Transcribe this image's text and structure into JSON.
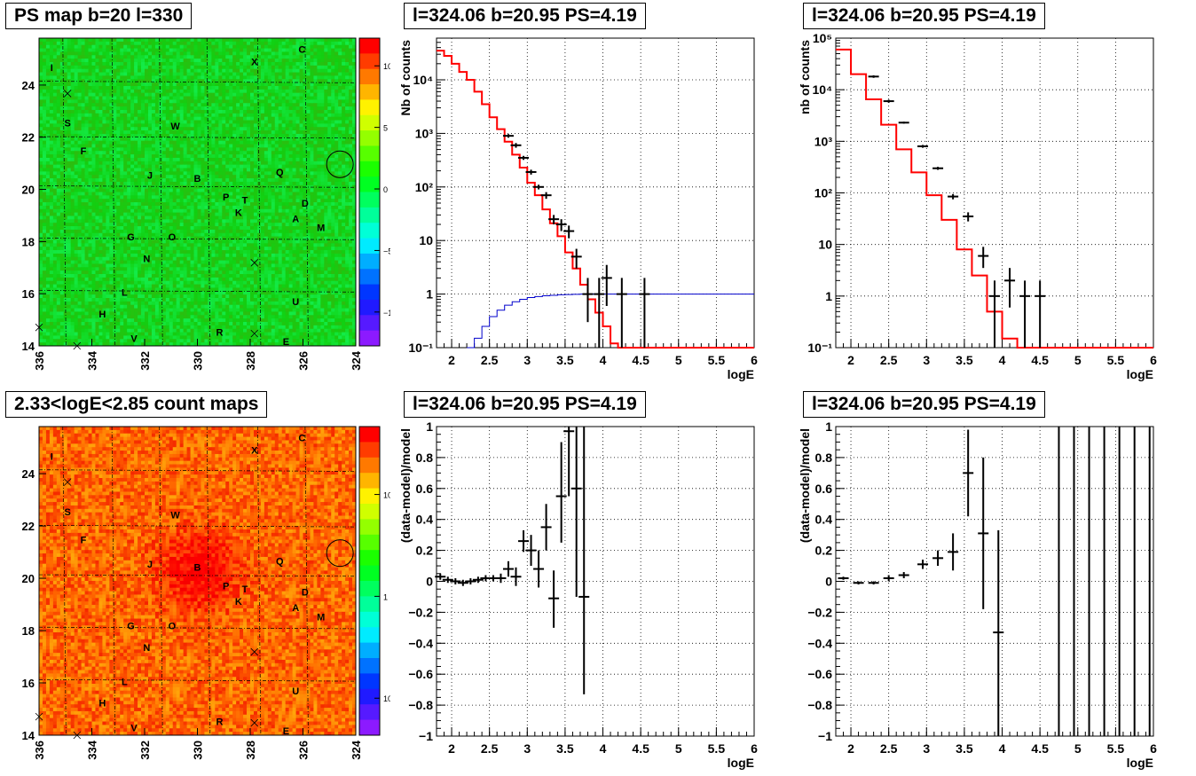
{
  "colors": {
    "fit": "#ff0000",
    "background": "#0000cc",
    "data": "#000000",
    "grid": "#888888"
  },
  "chart_data": [
    {
      "type": "heatmap",
      "title": "PS map b=20 l=330",
      "x_ticks": [
        "336",
        "334",
        "332",
        "330",
        "328",
        "326",
        "324"
      ],
      "y_ticks": [
        "14",
        "16",
        "18",
        "20",
        "22",
        "24"
      ],
      "colorbar_ticks": [
        "10",
        "5",
        "0",
        "−5",
        "−10"
      ],
      "sources": [
        "C",
        "X",
        "I",
        "S",
        "W",
        "F",
        "Q",
        "J",
        "B",
        "D",
        "P",
        "T",
        "K",
        "A",
        "M",
        "G",
        "O",
        "N",
        "L",
        "U",
        "H",
        "V",
        "R",
        "E"
      ],
      "palette": "green"
    },
    {
      "type": "line",
      "title": "l=324.06 b=20.95 PS=4.19",
      "xlabel": "logE",
      "ylabel": "Nb of counts",
      "yscale": "log",
      "xlim": [
        1.8,
        6
      ],
      "ylim": [
        0.1,
        60000
      ],
      "x_ticks": [
        "2",
        "2.5",
        "3",
        "3.5",
        "4",
        "4.5",
        "5",
        "5.5",
        "6"
      ],
      "y_ticks": [
        "10⁻¹",
        "1",
        "10",
        "10²",
        "10³",
        "10⁴"
      ],
      "series": [
        {
          "kind": "step",
          "color": "red",
          "x": [
            1.8,
            1.9,
            2.0,
            2.1,
            2.2,
            2.3,
            2.4,
            2.5,
            2.6,
            2.7,
            2.8,
            2.9,
            3.0,
            3.1,
            3.2,
            3.3,
            3.4,
            3.5,
            3.6,
            3.7,
            3.8,
            3.9,
            4.0,
            4.1,
            4.2,
            4.3,
            4.4,
            4.5,
            4.6,
            4.7,
            4.8,
            4.9,
            5.0,
            5.1,
            5.2,
            5.3,
            5.4,
            5.5,
            5.6,
            5.7,
            5.8,
            5.9
          ],
          "y": [
            35000,
            28000,
            20000,
            14000,
            10000,
            6000,
            3500,
            2000,
            1200,
            700,
            400,
            230,
            120,
            70,
            38,
            21,
            12,
            6,
            3,
            1.5,
            0.8,
            0.45,
            0.25,
            0.12,
            0.1,
            0.1,
            0.1,
            0.1,
            0.1,
            0.1,
            0.1,
            0.1,
            0.1,
            0.1,
            0.1,
            0.1,
            0.1,
            0.1,
            0.1,
            0.1,
            0.1,
            0.1
          ]
        },
        {
          "kind": "step",
          "color": "blue",
          "x": [
            2.2,
            2.3,
            2.4,
            2.5,
            2.6,
            2.7,
            2.8,
            2.9,
            3.0,
            3.1,
            3.2,
            3.3,
            3.4,
            3.5,
            3.6,
            3.7,
            3.8,
            3.9,
            4.0,
            4.1,
            4.2,
            4.3,
            4.4,
            4.5,
            4.6,
            4.7,
            4.8,
            4.9,
            5.0,
            5.1,
            5.2,
            5.3,
            5.4,
            5.5,
            5.6,
            5.7,
            5.8,
            5.9
          ],
          "y": [
            0.1,
            0.15,
            0.25,
            0.38,
            0.5,
            0.62,
            0.72,
            0.8,
            0.86,
            0.9,
            0.93,
            0.95,
            0.97,
            0.98,
            0.99,
            1,
            1,
            1,
            1,
            1,
            1,
            1,
            1,
            1,
            1,
            1,
            1,
            1,
            1,
            1,
            1,
            1,
            1,
            1,
            1,
            1,
            1,
            1
          ]
        },
        {
          "kind": "points",
          "color": "black",
          "x": [
            2.75,
            2.85,
            2.95,
            3.05,
            3.15,
            3.25,
            3.35,
            3.45,
            3.55,
            3.65,
            3.8,
            3.95,
            4.05,
            4.25,
            4.55
          ],
          "y": [
            900,
            600,
            350,
            190,
            100,
            70,
            25,
            20,
            15,
            5,
            1,
            1,
            2,
            1,
            1
          ],
          "lo": [
            830,
            540,
            320,
            170,
            90,
            60,
            20,
            15,
            11,
            3,
            0.3,
            0.1,
            0.6,
            0.1,
            0.1
          ],
          "hi": [
            970,
            660,
            380,
            210,
            110,
            80,
            30,
            25,
            19,
            7,
            2,
            2,
            3.5,
            2,
            2
          ]
        }
      ]
    },
    {
      "type": "line",
      "title": "l=324.06 b=20.95 PS=4.19",
      "xlabel": "logE",
      "ylabel": "nb of counts",
      "yscale": "log",
      "xlim": [
        1.8,
        6
      ],
      "ylim": [
        0.1,
        100000
      ],
      "x_ticks": [
        "2",
        "2.5",
        "3",
        "3.5",
        "4",
        "4.5",
        "5",
        "5.5",
        "6"
      ],
      "y_ticks": [
        "10⁻¹",
        "1",
        "10",
        "10²",
        "10³",
        "10⁴",
        "10⁵"
      ],
      "series": [
        {
          "kind": "step",
          "color": "red",
          "x": [
            1.8,
            2.0,
            2.2,
            2.4,
            2.6,
            2.8,
            3.0,
            3.2,
            3.4,
            3.6,
            3.8,
            4.0,
            4.2,
            4.4,
            4.6,
            4.8,
            5.0,
            5.2,
            5.4,
            5.6,
            5.8
          ],
          "y": [
            60000,
            20000,
            6500,
            2100,
            700,
            250,
            90,
            30,
            8,
            2.5,
            0.5,
            0.15,
            0.1,
            0.1,
            0.1,
            0.1,
            0.1,
            0.1,
            0.1,
            0.1,
            0.1
          ]
        },
        {
          "kind": "points",
          "color": "black",
          "x": [
            2.3,
            2.5,
            2.7,
            2.95,
            3.15,
            3.35,
            3.55,
            3.75,
            3.9,
            4.1,
            4.3,
            4.5
          ],
          "y": [
            18000,
            6000,
            2300,
            800,
            300,
            85,
            35,
            6,
            1,
            2,
            1,
            1
          ],
          "lo": [
            17000,
            5600,
            2200,
            750,
            280,
            75,
            28,
            3.5,
            0.1,
            0.6,
            0.1,
            0.1
          ],
          "hi": [
            19000,
            6400,
            2400,
            850,
            320,
            95,
            42,
            9,
            2,
            3.5,
            2,
            2
          ]
        }
      ]
    },
    {
      "type": "heatmap",
      "title": "2.33<logE<2.85 count maps",
      "x_ticks": [
        "336",
        "334",
        "332",
        "330",
        "328",
        "326",
        "324"
      ],
      "y_ticks": [
        "14",
        "16",
        "18",
        "20",
        "22",
        "24"
      ],
      "colorbar_ticks": [
        "10",
        "1",
        "10⁻¹"
      ],
      "sources": [
        "C",
        "X",
        "I",
        "S",
        "W",
        "F",
        "Q",
        "J",
        "B",
        "D",
        "P",
        "T",
        "K",
        "A",
        "M",
        "G",
        "O",
        "N",
        "L",
        "U",
        "H",
        "V",
        "R",
        "E"
      ],
      "palette": "red"
    },
    {
      "type": "scatter",
      "title": "l=324.06 b=20.95 PS=4.19",
      "xlabel": "logE",
      "ylabel": "(data-model)/model",
      "xlim": [
        1.8,
        6
      ],
      "ylim": [
        -1,
        1
      ],
      "x_ticks": [
        "2",
        "2.5",
        "3",
        "3.5",
        "4",
        "4.5",
        "5",
        "5.5",
        "6"
      ],
      "y_ticks": [
        "−1",
        "−0.8",
        "−0.6",
        "−0.4",
        "−0.2",
        "0",
        "0.2",
        "0.4",
        "0.6",
        "0.8",
        "1"
      ],
      "series": [
        {
          "kind": "points",
          "color": "black",
          "x": [
            1.85,
            1.95,
            2.05,
            2.15,
            2.25,
            2.35,
            2.45,
            2.55,
            2.65,
            2.75,
            2.85,
            2.95,
            3.05,
            3.15,
            3.25,
            3.35,
            3.45,
            3.55,
            3.65,
            3.75
          ],
          "y": [
            0.03,
            0.01,
            0,
            -0.01,
            0,
            0.01,
            0.02,
            0.02,
            0.02,
            0.08,
            0.03,
            0.26,
            0.2,
            0.08,
            0.35,
            -0.11,
            0.55,
            0.97,
            0.6,
            -0.1
          ],
          "lo": [
            0.01,
            -0.01,
            -0.02,
            -0.03,
            -0.02,
            -0.01,
            0,
            0,
            -0.01,
            0.03,
            -0.03,
            0.19,
            0.1,
            -0.04,
            0.2,
            -0.3,
            0.25,
            0.55,
            -0.1,
            -0.73
          ],
          "hi": [
            0.05,
            0.03,
            0.02,
            0.01,
            0.02,
            0.03,
            0.04,
            0.04,
            0.05,
            0.13,
            0.09,
            0.33,
            0.3,
            0.2,
            0.5,
            0.07,
            0.9,
            1,
            1,
            1
          ]
        }
      ]
    },
    {
      "type": "scatter",
      "title": "l=324.06 b=20.95 PS=4.19",
      "xlabel": "logE",
      "ylabel": "(data-model)/model",
      "xlim": [
        1.8,
        6
      ],
      "ylim": [
        -1,
        1
      ],
      "x_ticks": [
        "2",
        "2.5",
        "3",
        "3.5",
        "4",
        "4.5",
        "5",
        "5.5",
        "6"
      ],
      "y_ticks": [
        "−1",
        "−0.8",
        "−0.6",
        "−0.4",
        "−0.2",
        "0",
        "0.2",
        "0.4",
        "0.6",
        "0.8",
        "1"
      ],
      "vertical_bars_x": [
        4.75,
        4.95,
        5.15,
        5.35,
        5.55,
        5.75,
        5.95
      ],
      "series": [
        {
          "kind": "points",
          "color": "black",
          "x": [
            1.9,
            2.1,
            2.3,
            2.5,
            2.7,
            2.95,
            3.15,
            3.35,
            3.55,
            3.75,
            3.95
          ],
          "y": [
            0.02,
            -0.01,
            -0.01,
            0.02,
            0.04,
            0.11,
            0.15,
            0.19,
            0.7,
            0.31,
            -0.33
          ],
          "lo": [
            0.01,
            -0.02,
            -0.02,
            0,
            0.02,
            0.08,
            0.1,
            0.07,
            0.42,
            -0.18,
            -1
          ],
          "hi": [
            0.03,
            0,
            0,
            0.04,
            0.06,
            0.14,
            0.2,
            0.31,
            0.98,
            0.8,
            0.33
          ]
        }
      ]
    }
  ]
}
